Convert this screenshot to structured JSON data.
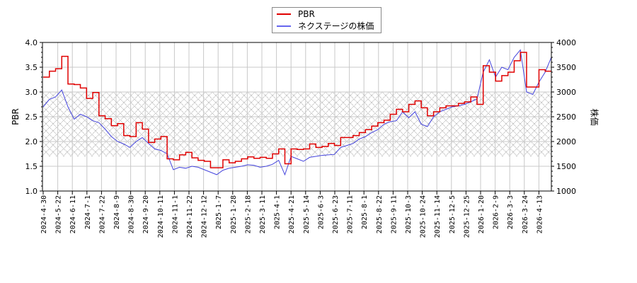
{
  "chart_data": {
    "type": "line",
    "title": "",
    "legend": {
      "position": "top-center",
      "entries": [
        {
          "name": "PBR",
          "color": "#e00000"
        },
        {
          "name": "ネクステージの株価",
          "color": "#4444dd"
        }
      ]
    },
    "xlabel": "",
    "ylabel_left": "PBR",
    "ylabel_right": "株価",
    "ylim_left": [
      1.0,
      4.0
    ],
    "ylim_right": [
      1000,
      4000
    ],
    "yticks_left": [
      "1.0",
      "1.5",
      "2.0",
      "2.5",
      "3.0",
      "3.5",
      "4.0"
    ],
    "yticks_right": [
      "1000",
      "1500",
      "2000",
      "2500",
      "3000",
      "3500",
      "4000"
    ],
    "x_ticks": [
      "2024-4-30",
      "2024-5-22",
      "2024-6-11",
      "2024-7-1",
      "2024-7-22",
      "2024-8-9",
      "2024-8-30",
      "2024-9-20",
      "2024-10-11",
      "2024-11-1",
      "2024-11-22",
      "2024-12-12",
      "2025-1-7",
      "2025-1-28",
      "2025-2-18",
      "2025-3-11",
      "2025-4-1",
      "2025-4-21",
      "2025-5-14",
      "2025-6-3",
      "2025-6-23",
      "2025-7-11",
      "2025-8-1",
      "2025-8-22",
      "2025-9-11",
      "2025-10-3",
      "2025-10-24",
      "2025-11-14",
      "2025-12-5",
      "2025-12-25",
      "2026-1-20",
      "2026-2-9",
      "2026-3-3",
      "2026-3-24",
      "2026-4-13"
    ],
    "grid": true,
    "shaded_band": {
      "ymin": 1.7,
      "ymax": 3.0,
      "pattern": "crosshatch"
    },
    "series": [
      {
        "name": "PBR",
        "axis": "left",
        "color": "#e00000",
        "step": true,
        "values": [
          3.3,
          3.42,
          3.47,
          3.72,
          3.16,
          3.15,
          3.08,
          2.87,
          2.99,
          2.52,
          2.46,
          2.32,
          2.36,
          2.12,
          2.1,
          2.38,
          2.25,
          1.98,
          2.05,
          2.1,
          1.65,
          1.63,
          1.73,
          1.78,
          1.67,
          1.62,
          1.6,
          1.47,
          1.47,
          1.63,
          1.57,
          1.6,
          1.65,
          1.69,
          1.66,
          1.68,
          1.66,
          1.75,
          1.85,
          1.55,
          1.85,
          1.84,
          1.85,
          1.95,
          1.88,
          1.9,
          1.96,
          1.92,
          2.08,
          2.08,
          2.12,
          2.18,
          2.24,
          2.31,
          2.38,
          2.43,
          2.55,
          2.65,
          2.6,
          2.75,
          2.82,
          2.68,
          2.52,
          2.6,
          2.68,
          2.72,
          2.72,
          2.77,
          2.8,
          2.9,
          2.75,
          3.53,
          3.4,
          3.22,
          3.33,
          3.4,
          3.63,
          3.8,
          3.1,
          3.1,
          3.45,
          3.42,
          3.42
        ]
      },
      {
        "name": "ネクステージの株価",
        "axis": "right",
        "color": "#4444dd",
        "step": false,
        "values": [
          2700,
          2850,
          2900,
          3040,
          2700,
          2450,
          2550,
          2500,
          2420,
          2380,
          2250,
          2100,
          2000,
          1950,
          1880,
          2000,
          2080,
          1960,
          1850,
          1820,
          1750,
          1430,
          1480,
          1460,
          1500,
          1480,
          1430,
          1380,
          1330,
          1420,
          1460,
          1480,
          1500,
          1530,
          1520,
          1480,
          1500,
          1540,
          1620,
          1330,
          1700,
          1650,
          1600,
          1680,
          1700,
          1720,
          1730,
          1740,
          1880,
          1920,
          1960,
          2050,
          2100,
          2180,
          2240,
          2350,
          2400,
          2420,
          2600,
          2480,
          2600,
          2350,
          2300,
          2500,
          2600,
          2650,
          2700,
          2720,
          2750,
          2800,
          2860,
          3400,
          3650,
          3300,
          3500,
          3450,
          3700,
          3850,
          3000,
          2950,
          3200,
          3400,
          3700
        ]
      }
    ]
  }
}
